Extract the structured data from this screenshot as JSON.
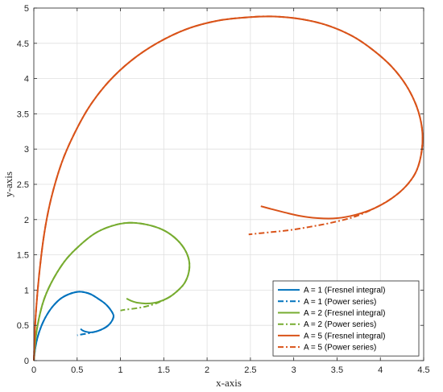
{
  "chart_data": {
    "type": "line",
    "title": "",
    "xlabel": "x-axis",
    "ylabel": "y-axis",
    "xlim": [
      0,
      4.5
    ],
    "ylim": [
      0,
      5
    ],
    "xticks": [
      "0",
      "0.5",
      "1",
      "1.5",
      "2",
      "2.5",
      "3",
      "3.5",
      "4",
      "4.5"
    ],
    "yticks": [
      "0",
      "0.5",
      "1",
      "1.5",
      "2",
      "2.5",
      "3",
      "3.5",
      "4",
      "4.5",
      "5"
    ],
    "grid": true,
    "legend_position": "bottom-right",
    "series": [
      {
        "name": "A = 1 (Fresnel integral)",
        "color": "#0072BD",
        "style": "solid",
        "x": [
          0,
          0.02,
          0.06,
          0.12,
          0.2,
          0.3,
          0.4,
          0.5,
          0.58,
          0.66,
          0.74,
          0.82,
          0.88,
          0.92,
          0.9,
          0.85,
          0.78,
          0.71,
          0.65,
          0.6,
          0.56,
          0.54
        ],
        "y": [
          0,
          0.2,
          0.4,
          0.58,
          0.74,
          0.87,
          0.94,
          0.975,
          0.97,
          0.94,
          0.88,
          0.81,
          0.73,
          0.64,
          0.56,
          0.49,
          0.44,
          0.41,
          0.4,
          0.41,
          0.43,
          0.45
        ]
      },
      {
        "name": "A = 1 (Power series)",
        "color": "#0072BD",
        "style": "dashdot",
        "x": [
          0,
          0.02,
          0.06,
          0.12,
          0.2,
          0.3,
          0.4,
          0.5,
          0.58,
          0.66,
          0.74,
          0.82,
          0.88,
          0.92,
          0.9,
          0.85,
          0.78,
          0.71,
          0.64,
          0.57,
          0.5
        ],
        "y": [
          0,
          0.2,
          0.4,
          0.58,
          0.74,
          0.87,
          0.94,
          0.975,
          0.97,
          0.94,
          0.88,
          0.81,
          0.73,
          0.64,
          0.56,
          0.49,
          0.44,
          0.41,
          0.39,
          0.375,
          0.36
        ]
      },
      {
        "name": "A = 2 (Fresnel integral)",
        "color": "#77AC30",
        "style": "solid",
        "x": [
          0,
          0.03,
          0.1,
          0.2,
          0.35,
          0.5,
          0.7,
          0.9,
          1.1,
          1.3,
          1.48,
          1.62,
          1.73,
          1.79,
          1.79,
          1.74,
          1.65,
          1.55,
          1.43,
          1.31,
          1.2,
          1.12,
          1.07
        ],
        "y": [
          0,
          0.4,
          0.8,
          1.1,
          1.4,
          1.6,
          1.8,
          1.91,
          1.955,
          1.93,
          1.86,
          1.75,
          1.6,
          1.43,
          1.26,
          1.1,
          0.98,
          0.89,
          0.83,
          0.81,
          0.82,
          0.85,
          0.88
        ]
      },
      {
        "name": "A = 2 (Power series)",
        "color": "#77AC30",
        "style": "dashdot",
        "x": [
          0,
          0.03,
          0.1,
          0.2,
          0.35,
          0.5,
          0.7,
          0.9,
          1.1,
          1.3,
          1.48,
          1.62,
          1.73,
          1.79,
          1.79,
          1.74,
          1.65,
          1.55,
          1.43,
          1.3,
          1.17,
          1.04,
          1.0
        ],
        "y": [
          0,
          0.4,
          0.8,
          1.1,
          1.4,
          1.6,
          1.8,
          1.91,
          1.955,
          1.93,
          1.86,
          1.75,
          1.6,
          1.43,
          1.26,
          1.1,
          0.98,
          0.89,
          0.82,
          0.77,
          0.74,
          0.72,
          0.71
        ]
      },
      {
        "name": "A = 5 (Fresnel integral)",
        "color": "#D95319",
        "style": "solid",
        "x": [
          0,
          0.02,
          0.06,
          0.12,
          0.2,
          0.32,
          0.46,
          0.64,
          0.86,
          1.12,
          1.42,
          1.76,
          2.12,
          2.48,
          2.78,
          3.1,
          3.4,
          3.68,
          3.92,
          4.13,
          4.3,
          4.42,
          4.48,
          4.48,
          4.42,
          4.3,
          4.13,
          3.93,
          3.72,
          3.5,
          3.28,
          3.08,
          2.9,
          2.74,
          2.62
        ],
        "y": [
          0,
          0.6,
          1.2,
          1.8,
          2.3,
          2.8,
          3.2,
          3.6,
          3.95,
          4.25,
          4.5,
          4.7,
          4.82,
          4.87,
          4.88,
          4.84,
          4.75,
          4.6,
          4.4,
          4.17,
          3.9,
          3.6,
          3.3,
          3.0,
          2.7,
          2.48,
          2.3,
          2.16,
          2.07,
          2.02,
          2.02,
          2.05,
          2.1,
          2.15,
          2.19
        ]
      },
      {
        "name": "A = 5 (Power series)",
        "color": "#D95319",
        "style": "dashdot",
        "x": [
          0,
          0.02,
          0.06,
          0.12,
          0.2,
          0.32,
          0.46,
          0.64,
          0.86,
          1.12,
          1.42,
          1.76,
          2.12,
          2.48,
          2.78,
          3.1,
          3.4,
          3.68,
          3.92,
          4.13,
          4.3,
          4.42,
          4.48,
          4.48,
          4.42,
          4.3,
          4.13,
          3.93,
          3.7,
          3.45,
          3.2,
          2.95,
          2.72,
          2.48
        ],
        "y": [
          0,
          0.6,
          1.2,
          1.8,
          2.3,
          2.8,
          3.2,
          3.6,
          3.95,
          4.25,
          4.5,
          4.7,
          4.82,
          4.87,
          4.88,
          4.84,
          4.75,
          4.6,
          4.4,
          4.17,
          3.9,
          3.6,
          3.3,
          3.0,
          2.7,
          2.48,
          2.3,
          2.16,
          2.04,
          1.96,
          1.9,
          1.85,
          1.82,
          1.79
        ]
      }
    ]
  }
}
